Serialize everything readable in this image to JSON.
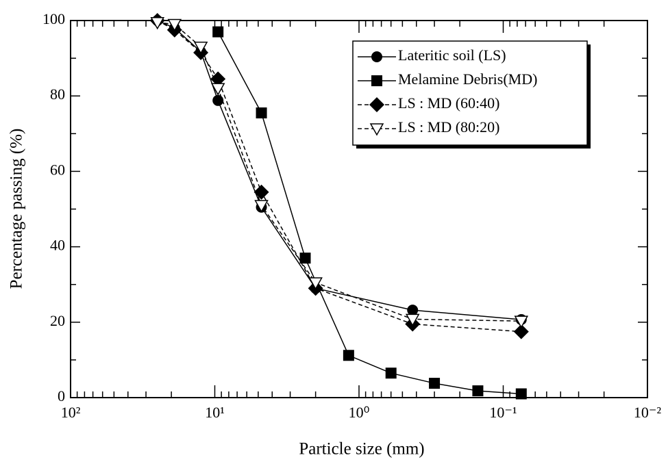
{
  "chart_data": {
    "type": "line",
    "xlabel": "Particle size (mm)",
    "ylabel": "Percentage passing (%)",
    "xscale": "log",
    "xlim": [
      100,
      0.01
    ],
    "ylim": [
      0,
      100
    ],
    "xticks": [
      {
        "value": 100,
        "label": "10²"
      },
      {
        "value": 10,
        "label": "10¹"
      },
      {
        "value": 1,
        "label": "10⁰"
      },
      {
        "value": 0.1,
        "label": "10⁻¹"
      },
      {
        "value": 0.01,
        "label": "10⁻²"
      }
    ],
    "yticks": [
      0,
      20,
      40,
      60,
      80,
      100
    ],
    "legend": "upper right",
    "series": [
      {
        "name": "Lateritic soil (LS)",
        "color": "#000000",
        "marker": "circle",
        "linestyle": "solid",
        "x": [
          25,
          19,
          12.5,
          9.5,
          4.75,
          2.0,
          0.425,
          0.075
        ],
        "values": [
          100,
          98,
          91.7,
          78.8,
          50.5,
          29,
          23.2,
          20.7
        ]
      },
      {
        "name": "Melamine Debris(MD)",
        "color": "#000000",
        "marker": "square",
        "linestyle": "solid",
        "x": [
          9.5,
          4.75,
          2.36,
          1.18,
          0.6,
          0.3,
          0.15,
          0.075
        ],
        "values": [
          97,
          75.5,
          37,
          11.2,
          6.5,
          3.8,
          1.8,
          1
        ]
      },
      {
        "name": "LS : MD (60:40)",
        "color": "#000000",
        "marker": "diamond",
        "linestyle": "dashed",
        "x": [
          25,
          19,
          12.5,
          9.5,
          4.75,
          2.0,
          0.425,
          0.075
        ],
        "values": [
          100,
          97.5,
          91.5,
          84.5,
          54.5,
          29,
          19.5,
          17.5
        ]
      },
      {
        "name": "LS : MD (80:20)",
        "color": "#000000",
        "marker": "triangle-down-open",
        "linestyle": "dashed",
        "x": [
          25,
          19,
          12.5,
          9.5,
          4.75,
          2.0,
          0.425,
          0.075
        ],
        "values": [
          99.5,
          99,
          93,
          82,
          51,
          30.5,
          20.8,
          20.3
        ]
      }
    ]
  }
}
